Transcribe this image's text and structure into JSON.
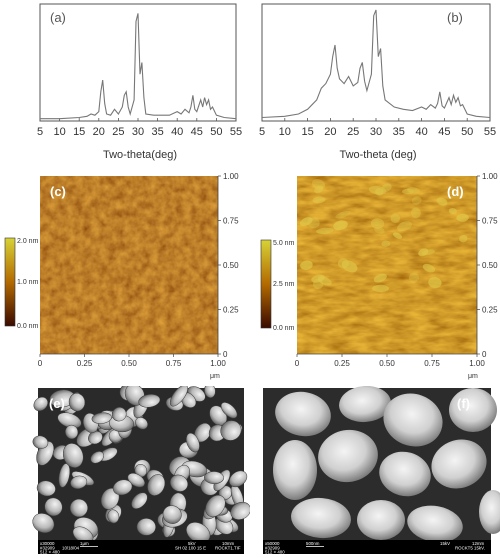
{
  "figure": {
    "panel_labels": {
      "a": "(a)",
      "b": "(b)",
      "c": "(c)",
      "d": "(d)",
      "e": "(e)",
      "f": "(f)"
    },
    "xrd": {
      "xlabel": "Two-theta(deg)",
      "xlabel_b": "Two-theta (deg)",
      "xticks": [
        "5",
        "10",
        "15",
        "20",
        "25",
        "30",
        "35",
        "40",
        "45",
        "50",
        "55"
      ]
    },
    "afm": {
      "c_ticks": [
        "0",
        "0.25",
        "0.50",
        "0.75",
        "1.00"
      ],
      "d_ticks": [
        "0",
        "0.25",
        "0.50",
        "0.75",
        "1.00"
      ],
      "unit": "μm",
      "colorbar_c": [
        "2.0 nm",
        "1.0 nm",
        "0.0 nm"
      ],
      "colorbar_d": [
        "5.0 nm",
        "2.5 nm",
        "0.0 nm"
      ]
    },
    "sem": {
      "e_footer": [
        "x30000",
        "1μm",
        "5kV",
        "10mm",
        "#32909",
        "10/18/04",
        "SH 02 100 15 E",
        "ROCKT1.TIF",
        "512 × 480"
      ],
      "f_footer": [
        "x50000",
        "500nm",
        "15kV",
        "12mm",
        "#32909",
        "ROCKT5 15kV.",
        "512 × 480"
      ]
    }
  },
  "chart_data": [
    {
      "type": "line",
      "title": "",
      "xlabel": "Two-theta(deg)",
      "ylabel": "",
      "xlim": [
        5,
        55
      ],
      "x": [
        5,
        10,
        15,
        17,
        18,
        19,
        20,
        20.5,
        21,
        21.5,
        22,
        23,
        24,
        25,
        26,
        26.5,
        27,
        27.5,
        28,
        29,
        29.5,
        30,
        30.5,
        31,
        31.5,
        32,
        34,
        36,
        38,
        40,
        41,
        42,
        43,
        43.5,
        44,
        44.5,
        45,
        46,
        46.5,
        47,
        47.5,
        48,
        48.5,
        49,
        50,
        52,
        55
      ],
      "y": [
        0.02,
        0.02,
        0.03,
        0.04,
        0.06,
        0.05,
        0.08,
        0.25,
        0.35,
        0.15,
        0.06,
        0.05,
        0.1,
        0.06,
        0.12,
        0.22,
        0.25,
        0.12,
        0.06,
        0.18,
        0.85,
        0.92,
        0.4,
        0.5,
        0.2,
        0.06,
        0.05,
        0.05,
        0.05,
        0.08,
        0.06,
        0.1,
        0.07,
        0.12,
        0.22,
        0.1,
        0.08,
        0.18,
        0.12,
        0.2,
        0.14,
        0.18,
        0.1,
        0.12,
        0.05,
        0.03,
        0.02
      ]
    },
    {
      "type": "line",
      "title": "",
      "xlabel": "Two-theta (deg)",
      "ylabel": "",
      "xlim": [
        5,
        55
      ],
      "x": [
        5,
        10,
        13,
        15,
        17,
        18,
        19,
        20,
        20.5,
        21,
        21.5,
        22,
        23,
        24,
        25,
        26,
        26.5,
        27,
        27.5,
        28,
        29,
        29.5,
        30,
        30.5,
        31,
        31.5,
        32,
        34,
        36,
        38,
        40,
        41,
        42,
        43,
        43.5,
        44,
        44.5,
        45,
        46,
        46.5,
        47,
        47.5,
        48,
        48.5,
        49,
        50,
        52,
        55
      ],
      "y": [
        0.03,
        0.04,
        0.06,
        0.1,
        0.18,
        0.28,
        0.32,
        0.4,
        0.55,
        0.65,
        0.45,
        0.36,
        0.32,
        0.38,
        0.3,
        0.33,
        0.45,
        0.5,
        0.34,
        0.26,
        0.4,
        0.9,
        0.95,
        0.55,
        0.62,
        0.3,
        0.18,
        0.12,
        0.1,
        0.09,
        0.12,
        0.1,
        0.14,
        0.11,
        0.15,
        0.25,
        0.13,
        0.11,
        0.2,
        0.14,
        0.22,
        0.16,
        0.2,
        0.13,
        0.14,
        0.06,
        0.04,
        0.03
      ]
    }
  ]
}
